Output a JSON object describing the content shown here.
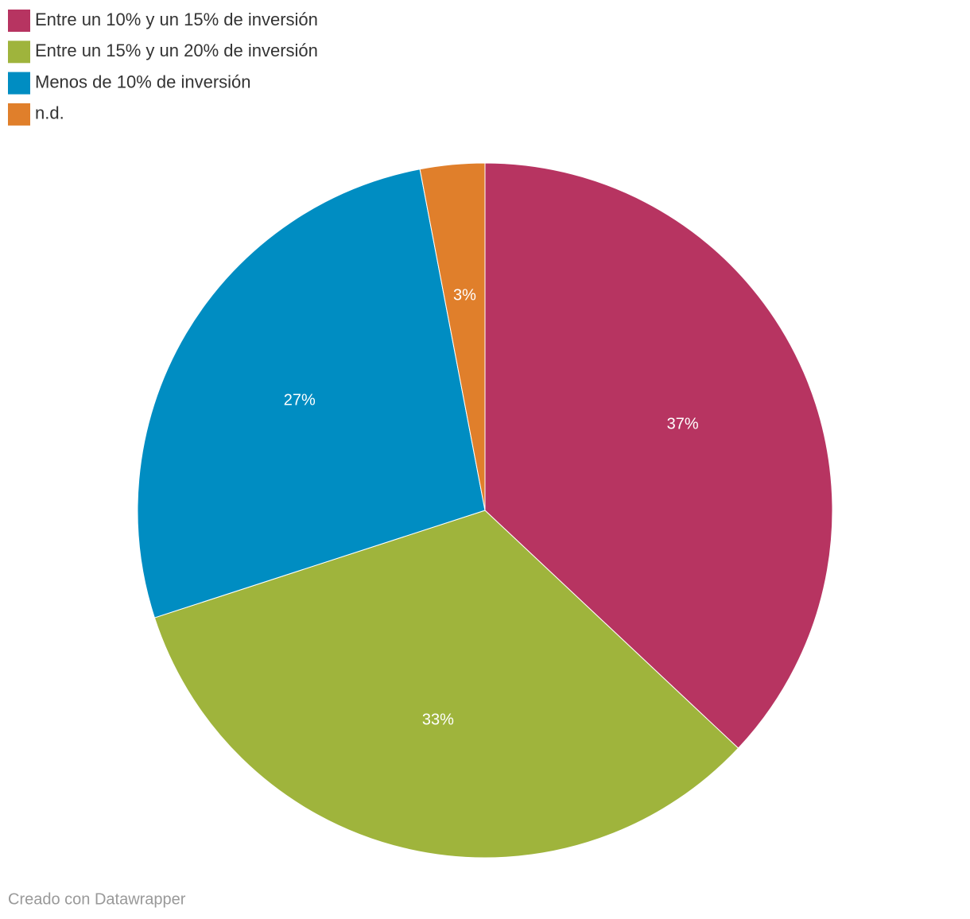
{
  "chart_data": {
    "type": "pie",
    "categories": [
      "Entre un 10% y un 15% de inversión",
      "Entre un 15% y un 20% de inversión",
      "Menos de 10% de inversión",
      "n.d."
    ],
    "values": [
      37,
      33,
      27,
      3
    ],
    "value_labels": [
      "37%",
      "33%",
      "27%",
      "3%"
    ],
    "colors": [
      "#b73461",
      "#9fb43c",
      "#008dc2",
      "#e07f2b"
    ],
    "legend": "top-left",
    "footer": "Creado con Datawrapper"
  }
}
